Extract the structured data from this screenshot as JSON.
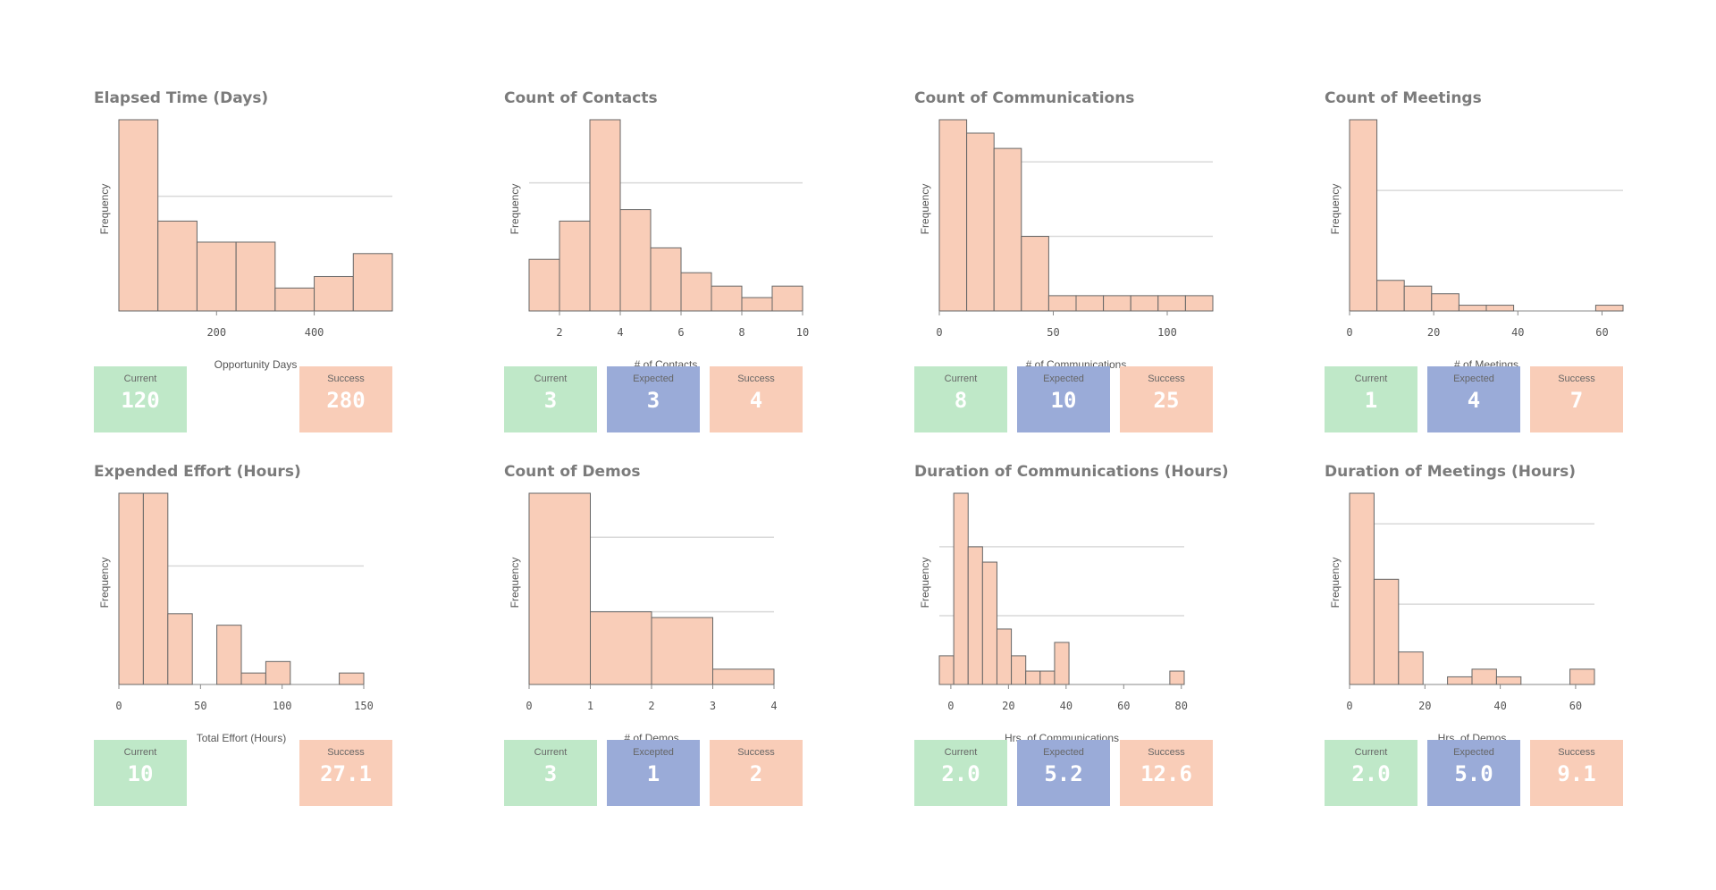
{
  "colors": {
    "bar_fill": "#f9cdb8",
    "bar_stroke": "#666666",
    "grid": "#d9d9d9",
    "current": "#bfe8c8",
    "expected": "#9aabd8",
    "success": "#f9cdb8"
  },
  "panels": [
    {
      "title": "Elapsed Time (Days)",
      "kpis": [
        {
          "label": "Current",
          "value": "120",
          "kind": "current",
          "slot": 0
        },
        {
          "label": "Success",
          "value": "280",
          "kind": "success",
          "slot": 2
        }
      ]
    },
    {
      "title": "Count of Contacts",
      "kpis": [
        {
          "label": "Current",
          "value": "3",
          "kind": "current",
          "slot": 0
        },
        {
          "label": "Expected",
          "value": "3",
          "kind": "expected",
          "slot": 1
        },
        {
          "label": "Success",
          "value": "4",
          "kind": "success",
          "slot": 2
        }
      ]
    },
    {
      "title": "Count of Communications",
      "kpis": [
        {
          "label": "Current",
          "value": "8",
          "kind": "current",
          "slot": 0
        },
        {
          "label": "Expected",
          "value": "10",
          "kind": "expected",
          "slot": 1
        },
        {
          "label": "Success",
          "value": "25",
          "kind": "success",
          "slot": 2
        }
      ]
    },
    {
      "title": "Count of Meetings",
      "kpis": [
        {
          "label": "Current",
          "value": "1",
          "kind": "current",
          "slot": 0
        },
        {
          "label": "Expected",
          "value": "4",
          "kind": "expected",
          "slot": 1
        },
        {
          "label": "Success",
          "value": "7",
          "kind": "success",
          "slot": 2
        }
      ]
    },
    {
      "title": "Expended Effort (Hours)",
      "kpis": [
        {
          "label": "Current",
          "value": "10",
          "kind": "current",
          "slot": 0
        },
        {
          "label": "Success",
          "value": "27.1",
          "kind": "success",
          "slot": 2
        }
      ]
    },
    {
      "title": "Count of Demos",
      "kpis": [
        {
          "label": "Current",
          "value": "3",
          "kind": "current",
          "slot": 0
        },
        {
          "label": "Excepted",
          "value": "1",
          "kind": "expected",
          "slot": 1
        },
        {
          "label": "Success",
          "value": "2",
          "kind": "success",
          "slot": 2
        }
      ]
    },
    {
      "title": "Duration of Communications (Hours)",
      "kpis": [
        {
          "label": "Current",
          "value": "2.0",
          "kind": "current",
          "slot": 0
        },
        {
          "label": "Expected",
          "value": "5.2",
          "kind": "expected",
          "slot": 1
        },
        {
          "label": "Success",
          "value": "12.6",
          "kind": "success",
          "slot": 2
        }
      ]
    },
    {
      "title": "Duration of Meetings (Hours)",
      "kpis": [
        {
          "label": "Current",
          "value": "2.0",
          "kind": "current",
          "slot": 0
        },
        {
          "label": "Expected",
          "value": "5.0",
          "kind": "expected",
          "slot": 1
        },
        {
          "label": "Success",
          "value": "9.1",
          "kind": "success",
          "slot": 2
        }
      ]
    }
  ],
  "chart_data": [
    {
      "type": "bar",
      "title": "Elapsed Time (Days)",
      "xlabel": "Opportunity Days",
      "ylabel": "Frequency",
      "xlim": [
        0,
        560
      ],
      "ylim": [
        0,
        1.0
      ],
      "xticks": [
        "200",
        "400"
      ],
      "xtick_values": [
        200,
        400
      ],
      "grid_y": [
        0.6
      ],
      "bins": [
        {
          "x0": 0,
          "x1": 80,
          "y": 1.0
        },
        {
          "x0": 80,
          "x1": 160,
          "y": 0.47
        },
        {
          "x0": 160,
          "x1": 240,
          "y": 0.36
        },
        {
          "x0": 240,
          "x1": 320,
          "y": 0.36
        },
        {
          "x0": 320,
          "x1": 400,
          "y": 0.12
        },
        {
          "x0": 400,
          "x1": 480,
          "y": 0.18
        },
        {
          "x0": 480,
          "x1": 560,
          "y": 0.3
        }
      ]
    },
    {
      "type": "bar",
      "title": "Count of Contacts",
      "xlabel": "# of Contacts",
      "ylabel": "Frequency",
      "xlim": [
        1,
        11
      ],
      "ylim": [
        0,
        1.0
      ],
      "xticks": [
        "2",
        "4",
        "6",
        "8",
        "10"
      ],
      "xtick_values": [
        2,
        4,
        6,
        8,
        10
      ],
      "grid_y": [
        0.67
      ],
      "bins": [
        {
          "x0": 1,
          "x1": 2,
          "y": 0.27
        },
        {
          "x0": 2,
          "x1": 3,
          "y": 0.47
        },
        {
          "x0": 3,
          "x1": 4,
          "y": 1.0
        },
        {
          "x0": 4,
          "x1": 5,
          "y": 0.53
        },
        {
          "x0": 5,
          "x1": 6,
          "y": 0.33
        },
        {
          "x0": 6,
          "x1": 7,
          "y": 0.2
        },
        {
          "x0": 7,
          "x1": 8,
          "y": 0.13
        },
        {
          "x0": 8,
          "x1": 9,
          "y": 0.07
        },
        {
          "x0": 9,
          "x1": 10,
          "y": 0.13
        }
      ],
      "xlim_override": [
        1,
        10
      ]
    },
    {
      "type": "bar",
      "title": "Count of Communications",
      "xlabel": "# of Communications",
      "ylabel": "Frequency",
      "xlim": [
        0,
        120
      ],
      "ylim": [
        0,
        1.0
      ],
      "xticks": [
        "0",
        "50",
        "100"
      ],
      "xtick_values": [
        0,
        50,
        100
      ],
      "grid_y": [
        0.39,
        0.78
      ],
      "bins": [
        {
          "x0": 0,
          "x1": 12,
          "y": 1.0
        },
        {
          "x0": 12,
          "x1": 24,
          "y": 0.93
        },
        {
          "x0": 24,
          "x1": 36,
          "y": 0.85
        },
        {
          "x0": 36,
          "x1": 48,
          "y": 0.39
        },
        {
          "x0": 48,
          "x1": 60,
          "y": 0.08
        },
        {
          "x0": 60,
          "x1": 72,
          "y": 0.08
        },
        {
          "x0": 72,
          "x1": 84,
          "y": 0.08
        },
        {
          "x0": 84,
          "x1": 96,
          "y": 0.08
        },
        {
          "x0": 96,
          "x1": 108,
          "y": 0.08
        },
        {
          "x0": 108,
          "x1": 120,
          "y": 0.08
        }
      ]
    },
    {
      "type": "bar",
      "title": "Count of Meetings",
      "xlabel": "# of Meetings",
      "ylabel": "Frequency",
      "xlim": [
        0,
        65
      ],
      "ylim": [
        0,
        1.0
      ],
      "xticks": [
        "0",
        "20",
        "40",
        "60"
      ],
      "xtick_values": [
        0,
        20,
        40,
        60
      ],
      "grid_y": [
        0.63
      ],
      "bins": [
        {
          "x0": 0,
          "x1": 6.5,
          "y": 1.0
        },
        {
          "x0": 6.5,
          "x1": 13,
          "y": 0.16
        },
        {
          "x0": 13,
          "x1": 19.5,
          "y": 0.13
        },
        {
          "x0": 19.5,
          "x1": 26,
          "y": 0.09
        },
        {
          "x0": 26,
          "x1": 32.5,
          "y": 0.03
        },
        {
          "x0": 32.5,
          "x1": 39,
          "y": 0.03
        },
        {
          "x0": 58.5,
          "x1": 65,
          "y": 0.03
        }
      ]
    },
    {
      "type": "bar",
      "title": "Expended Effort (Hours)",
      "xlabel": "Total Effort (Hours)",
      "ylabel": "Frequency",
      "xlim": [
        0,
        150
      ],
      "ylim": [
        0,
        1.0
      ],
      "xticks": [
        "0",
        "50",
        "100",
        "150"
      ],
      "xtick_values": [
        0,
        50,
        100,
        150
      ],
      "grid_y": [
        0.62
      ],
      "bins": [
        {
          "x0": 0,
          "x1": 15,
          "y": 1.0
        },
        {
          "x0": 15,
          "x1": 30,
          "y": 1.0
        },
        {
          "x0": 30,
          "x1": 45,
          "y": 0.37
        },
        {
          "x0": 60,
          "x1": 75,
          "y": 0.31
        },
        {
          "x0": 75,
          "x1": 90,
          "y": 0.06
        },
        {
          "x0": 90,
          "x1": 105,
          "y": 0.12
        },
        {
          "x0": 135,
          "x1": 150,
          "y": 0.06
        }
      ]
    },
    {
      "type": "bar",
      "title": "Count of Demos",
      "xlabel": "# of Demos",
      "ylabel": "Frequency",
      "xlim": [
        0,
        4
      ],
      "ylim": [
        0,
        1.0
      ],
      "xticks": [
        "0",
        "1",
        "2",
        "3",
        "4"
      ],
      "xtick_values": [
        0,
        1,
        2,
        3,
        4
      ],
      "grid_y": [
        0.38,
        0.77
      ],
      "bins": [
        {
          "x0": 0,
          "x1": 1,
          "y": 1.0
        },
        {
          "x0": 1,
          "x1": 2,
          "y": 0.38
        },
        {
          "x0": 2,
          "x1": 3,
          "y": 0.35
        },
        {
          "x0": 3,
          "x1": 4,
          "y": 0.08
        }
      ]
    },
    {
      "type": "bar",
      "title": "Duration of Communications (Hours)",
      "xlabel": "Hrs. of Communications",
      "ylabel": "Frequency",
      "xlim": [
        -4,
        81
      ],
      "ylim": [
        0,
        1.0
      ],
      "xticks": [
        "0",
        "20",
        "40",
        "60",
        "80"
      ],
      "xtick_values": [
        0,
        20,
        40,
        60,
        80
      ],
      "grid_y": [
        0.36,
        0.72
      ],
      "bins": [
        {
          "x0": -4,
          "x1": 1,
          "y": 0.15
        },
        {
          "x0": 1,
          "x1": 6,
          "y": 1.0
        },
        {
          "x0": 6,
          "x1": 11,
          "y": 0.72
        },
        {
          "x0": 11,
          "x1": 16,
          "y": 0.64
        },
        {
          "x0": 16,
          "x1": 21,
          "y": 0.29
        },
        {
          "x0": 21,
          "x1": 26,
          "y": 0.15
        },
        {
          "x0": 26,
          "x1": 31,
          "y": 0.07
        },
        {
          "x0": 31,
          "x1": 36,
          "y": 0.07
        },
        {
          "x0": 36,
          "x1": 41,
          "y": 0.22
        },
        {
          "x0": 76,
          "x1": 81,
          "y": 0.07
        }
      ]
    },
    {
      "type": "bar",
      "title": "Duration of Meetings (Hours)",
      "xlabel": "Hrs. of Demos",
      "ylabel": "Frequency",
      "xlim": [
        0,
        65
      ],
      "ylim": [
        0,
        1.0
      ],
      "xticks": [
        "0",
        "20",
        "40",
        "60"
      ],
      "xtick_values": [
        0,
        20,
        40,
        60
      ],
      "grid_y": [
        0.42,
        0.84
      ],
      "bins": [
        {
          "x0": 0,
          "x1": 6.5,
          "y": 1.0
        },
        {
          "x0": 6.5,
          "x1": 13,
          "y": 0.55
        },
        {
          "x0": 13,
          "x1": 19.5,
          "y": 0.17
        },
        {
          "x0": 26,
          "x1": 32.5,
          "y": 0.04
        },
        {
          "x0": 32.5,
          "x1": 39,
          "y": 0.08
        },
        {
          "x0": 39,
          "x1": 45.5,
          "y": 0.04
        },
        {
          "x0": 58.5,
          "x1": 65,
          "y": 0.08
        }
      ]
    }
  ]
}
